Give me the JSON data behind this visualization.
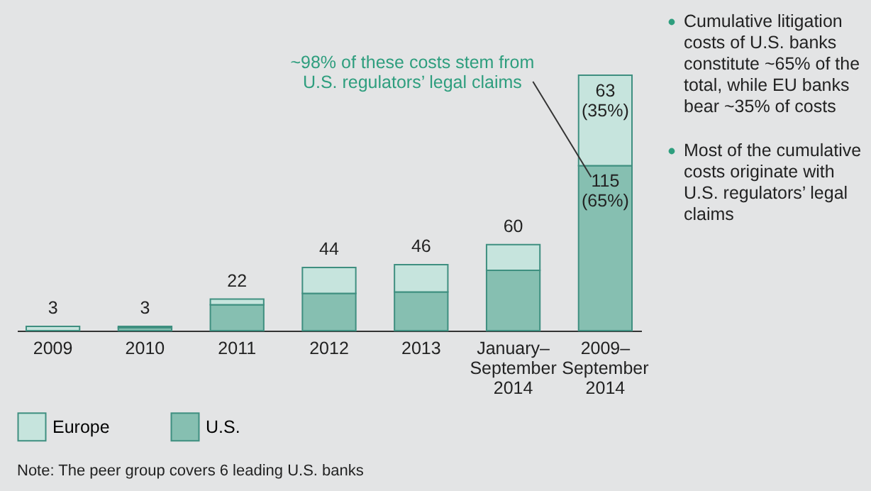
{
  "chart_data": {
    "type": "bar",
    "stacked": true,
    "categories": [
      "2009",
      "2010",
      "2011",
      "2012",
      "2013",
      "January–\nSeptember\n2014",
      "2009–\nSeptember\n2014"
    ],
    "series": [
      {
        "name": "U.S.",
        "color": "#86bfb1",
        "values": [
          0,
          2,
          18,
          26,
          27,
          42,
          115
        ],
        "value_labels": [
          null,
          null,
          null,
          null,
          null,
          null,
          "115 (65%)"
        ]
      },
      {
        "name": "Europe",
        "color": "#c6e4dd",
        "values": [
          3,
          1,
          4,
          18,
          19,
          18,
          63
        ],
        "value_labels": [
          null,
          null,
          null,
          null,
          null,
          null,
          "63 (35%)"
        ]
      }
    ],
    "totals": [
      "3",
      "3",
      "22",
      "44",
      "46",
      "60",
      null
    ],
    "legend": "bottom",
    "grid": false,
    "annotations": [
      "~98% of these costs stem from U.S. regulators’ legal claims",
      "Cumulative litigation costs of U.S. banks constitute ~65% of the total, while EU banks bear ~35% of costs",
      "Most of the cumulative costs originate with U.S. regulators’ legal claims",
      "Note: The peer group covers 6 leading U.S. banks"
    ]
  }
}
